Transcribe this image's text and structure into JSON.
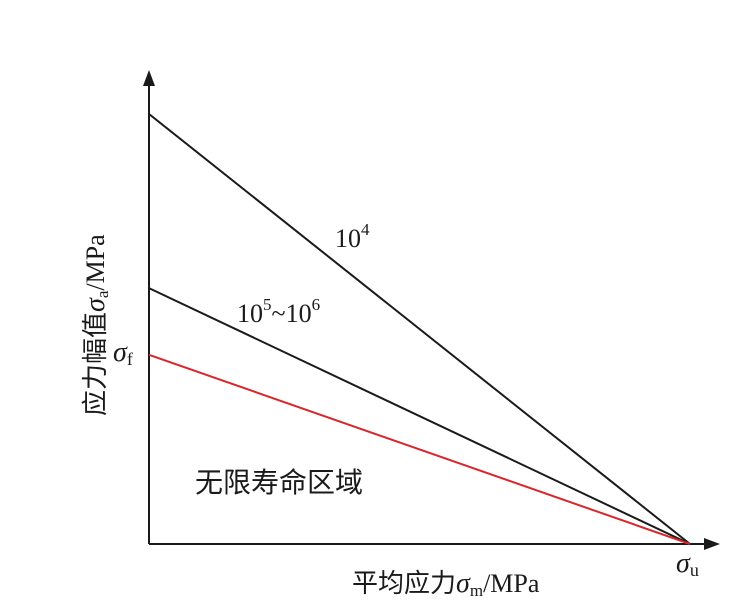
{
  "chart_data": {
    "type": "line",
    "xlabel": {
      "zh": "平均应力",
      "sym": "σ",
      "sub": "m",
      "unit": "/MPa"
    },
    "ylabel": {
      "zh": "应力幅值",
      "sym": "σ",
      "sub": "a",
      "unit": "/MPa"
    },
    "xlim": [
      0,
      1
    ],
    "ylim": [
      0,
      1
    ],
    "x_tick": {
      "sym": "σ",
      "sub": "u",
      "x": 1
    },
    "y_tick": {
      "sym": "σ",
      "sub": "f",
      "y": 0.44
    },
    "region_label": "无限寿命区域",
    "series": [
      {
        "id": "n1e4",
        "label_base": "10",
        "label_exp": "4",
        "label_tail": "",
        "color": "#1a1a1a",
        "x": [
          0,
          1
        ],
        "y": [
          1.0,
          0
        ]
      },
      {
        "id": "n1e5-1e6",
        "label_base": "10",
        "label_exp": "5",
        "label_tail": "~10",
        "label_exp2": "6",
        "color": "#1a1a1a",
        "x": [
          0,
          1
        ],
        "y": [
          0.595,
          0
        ]
      },
      {
        "id": "endurance",
        "color": "#d9262a",
        "x": [
          0,
          1
        ],
        "y": [
          0.44,
          0
        ]
      }
    ]
  }
}
